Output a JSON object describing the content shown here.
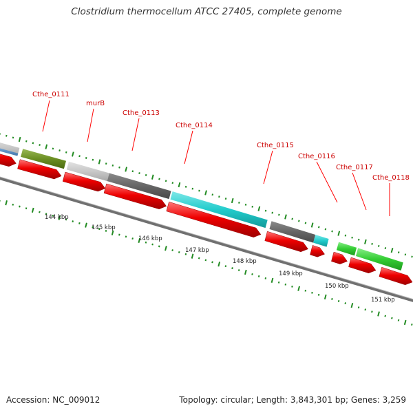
{
  "header": {
    "title": "Clostridium thermocellum ATCC 27405, complete genome"
  },
  "footer": {
    "accession": "Accession: NC_009012",
    "topology": "Topology: circular; Length: 3,843,301 bp; Genes: 3,259"
  },
  "gene_labels": [
    "Cthe_0111",
    "murB",
    "Cthe_0113",
    "Cthe_0114",
    "Cthe_0115",
    "Cthe_0116",
    "Cthe_0117",
    "Cthe_0118"
  ],
  "kbp_labels": [
    "144 kbp",
    "145 kbp",
    "146 kbp",
    "147 kbp",
    "148 kbp",
    "149 kbp",
    "150 kbp",
    "151 kbp"
  ],
  "colors": {
    "cds_arrow": "#ee0000",
    "backbone": "#888888",
    "gc_ticks": "#228b22",
    "label_text": "#cc0000",
    "green_feature": "#33cc33",
    "blue_feature": "#6699cc",
    "olive_feature": "#6b8e23",
    "light_gray_feature": "#c8c8c8",
    "dark_gray_feature": "#666666",
    "cyan_feature": "#22cccc"
  }
}
